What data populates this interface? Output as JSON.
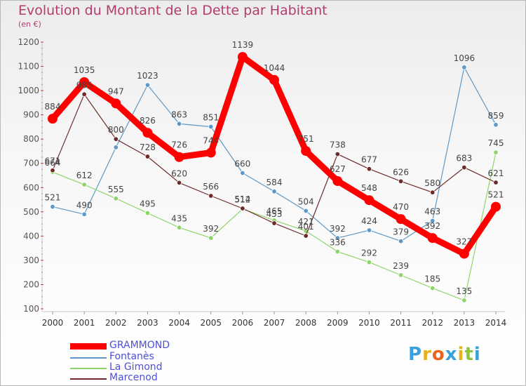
{
  "title": "Evolution du Montant de la Dette par Habitant",
  "unit": "(en €)",
  "logo": {
    "text": "Proxiti",
    "letters": [
      "P",
      "r",
      "o",
      "x",
      "i",
      "t",
      "i"
    ],
    "colors": [
      "#3aa0dc",
      "#e8b01a",
      "#e8641a",
      "#3aa0dc",
      "#e8b01a",
      "#8cc63f",
      "#3aa0dc"
    ]
  },
  "chart_data": {
    "type": "line",
    "title": "Evolution du Montant de la Dette par Habitant",
    "ylabel": "(en €)",
    "xlabel": "",
    "x": [
      "2000",
      "2001",
      "2002",
      "2003",
      "2004",
      "2005",
      "2006",
      "2007",
      "2008",
      "2009",
      "2010",
      "2011",
      "2012",
      "2013",
      "2014"
    ],
    "ylim": [
      100,
      1200
    ],
    "yticks": [
      "100",
      "200",
      "300",
      "400",
      "500",
      "600",
      "700",
      "800",
      "900",
      "1000",
      "1100",
      "1200"
    ],
    "grid": false,
    "legend_position": "bottom-left",
    "series": [
      {
        "name": "Fontanès",
        "color": "#5f98c6",
        "width": "thin",
        "values": [
          521,
          490,
          766,
          1023,
          863,
          851,
          660,
          584,
          504,
          392,
          424,
          379,
          463,
          1096,
          859
        ],
        "labels": [
          "521",
          "490",
          "",
          "1023",
          "863",
          "851",
          "660",
          "584",
          "504",
          "392",
          "424",
          "379",
          "463",
          "1096",
          "859"
        ]
      },
      {
        "name": "La Gimond",
        "color": "#8fd46a",
        "width": "thin",
        "values": [
          664,
          612,
          555,
          495,
          435,
          392,
          512,
          465,
          421,
          336,
          292,
          239,
          185,
          135,
          745
        ],
        "labels": [
          "664",
          "612",
          "555",
          "495",
          "435",
          "392",
          "512",
          "465",
          "421",
          "336",
          "292",
          "239",
          "185",
          "135",
          "745"
        ]
      },
      {
        "name": "Marcenod",
        "color": "#6e2a2a",
        "width": "thin",
        "values": [
          671,
          985,
          800,
          728,
          620,
          566,
          514,
          453,
          401,
          738,
          677,
          626,
          580,
          683,
          621
        ],
        "labels": [
          "671",
          "985",
          "800",
          "728",
          "620",
          "566",
          "514",
          "453",
          "401",
          "738",
          "677",
          "626",
          "580",
          "683",
          "621"
        ]
      },
      {
        "name": "GRAMMOND",
        "color": "#ff0000",
        "width": "thick",
        "values": [
          884,
          1035,
          947,
          826,
          726,
          744,
          1139,
          1044,
          751,
          627,
          548,
          470,
          392,
          327,
          521
        ],
        "labels": [
          "884",
          "1035",
          "947",
          "826",
          "726",
          "744",
          "1139",
          "1044",
          "751",
          "627",
          "548",
          "470",
          "392",
          "327",
          "521"
        ]
      }
    ],
    "legend": [
      {
        "name": "GRAMMOND",
        "color": "#ff0000"
      },
      {
        "name": "Fontanès",
        "color": "#5f98c6"
      },
      {
        "name": "La Gimond",
        "color": "#8fd46a"
      },
      {
        "name": "Marcenod",
        "color": "#6e2a2a"
      }
    ]
  }
}
